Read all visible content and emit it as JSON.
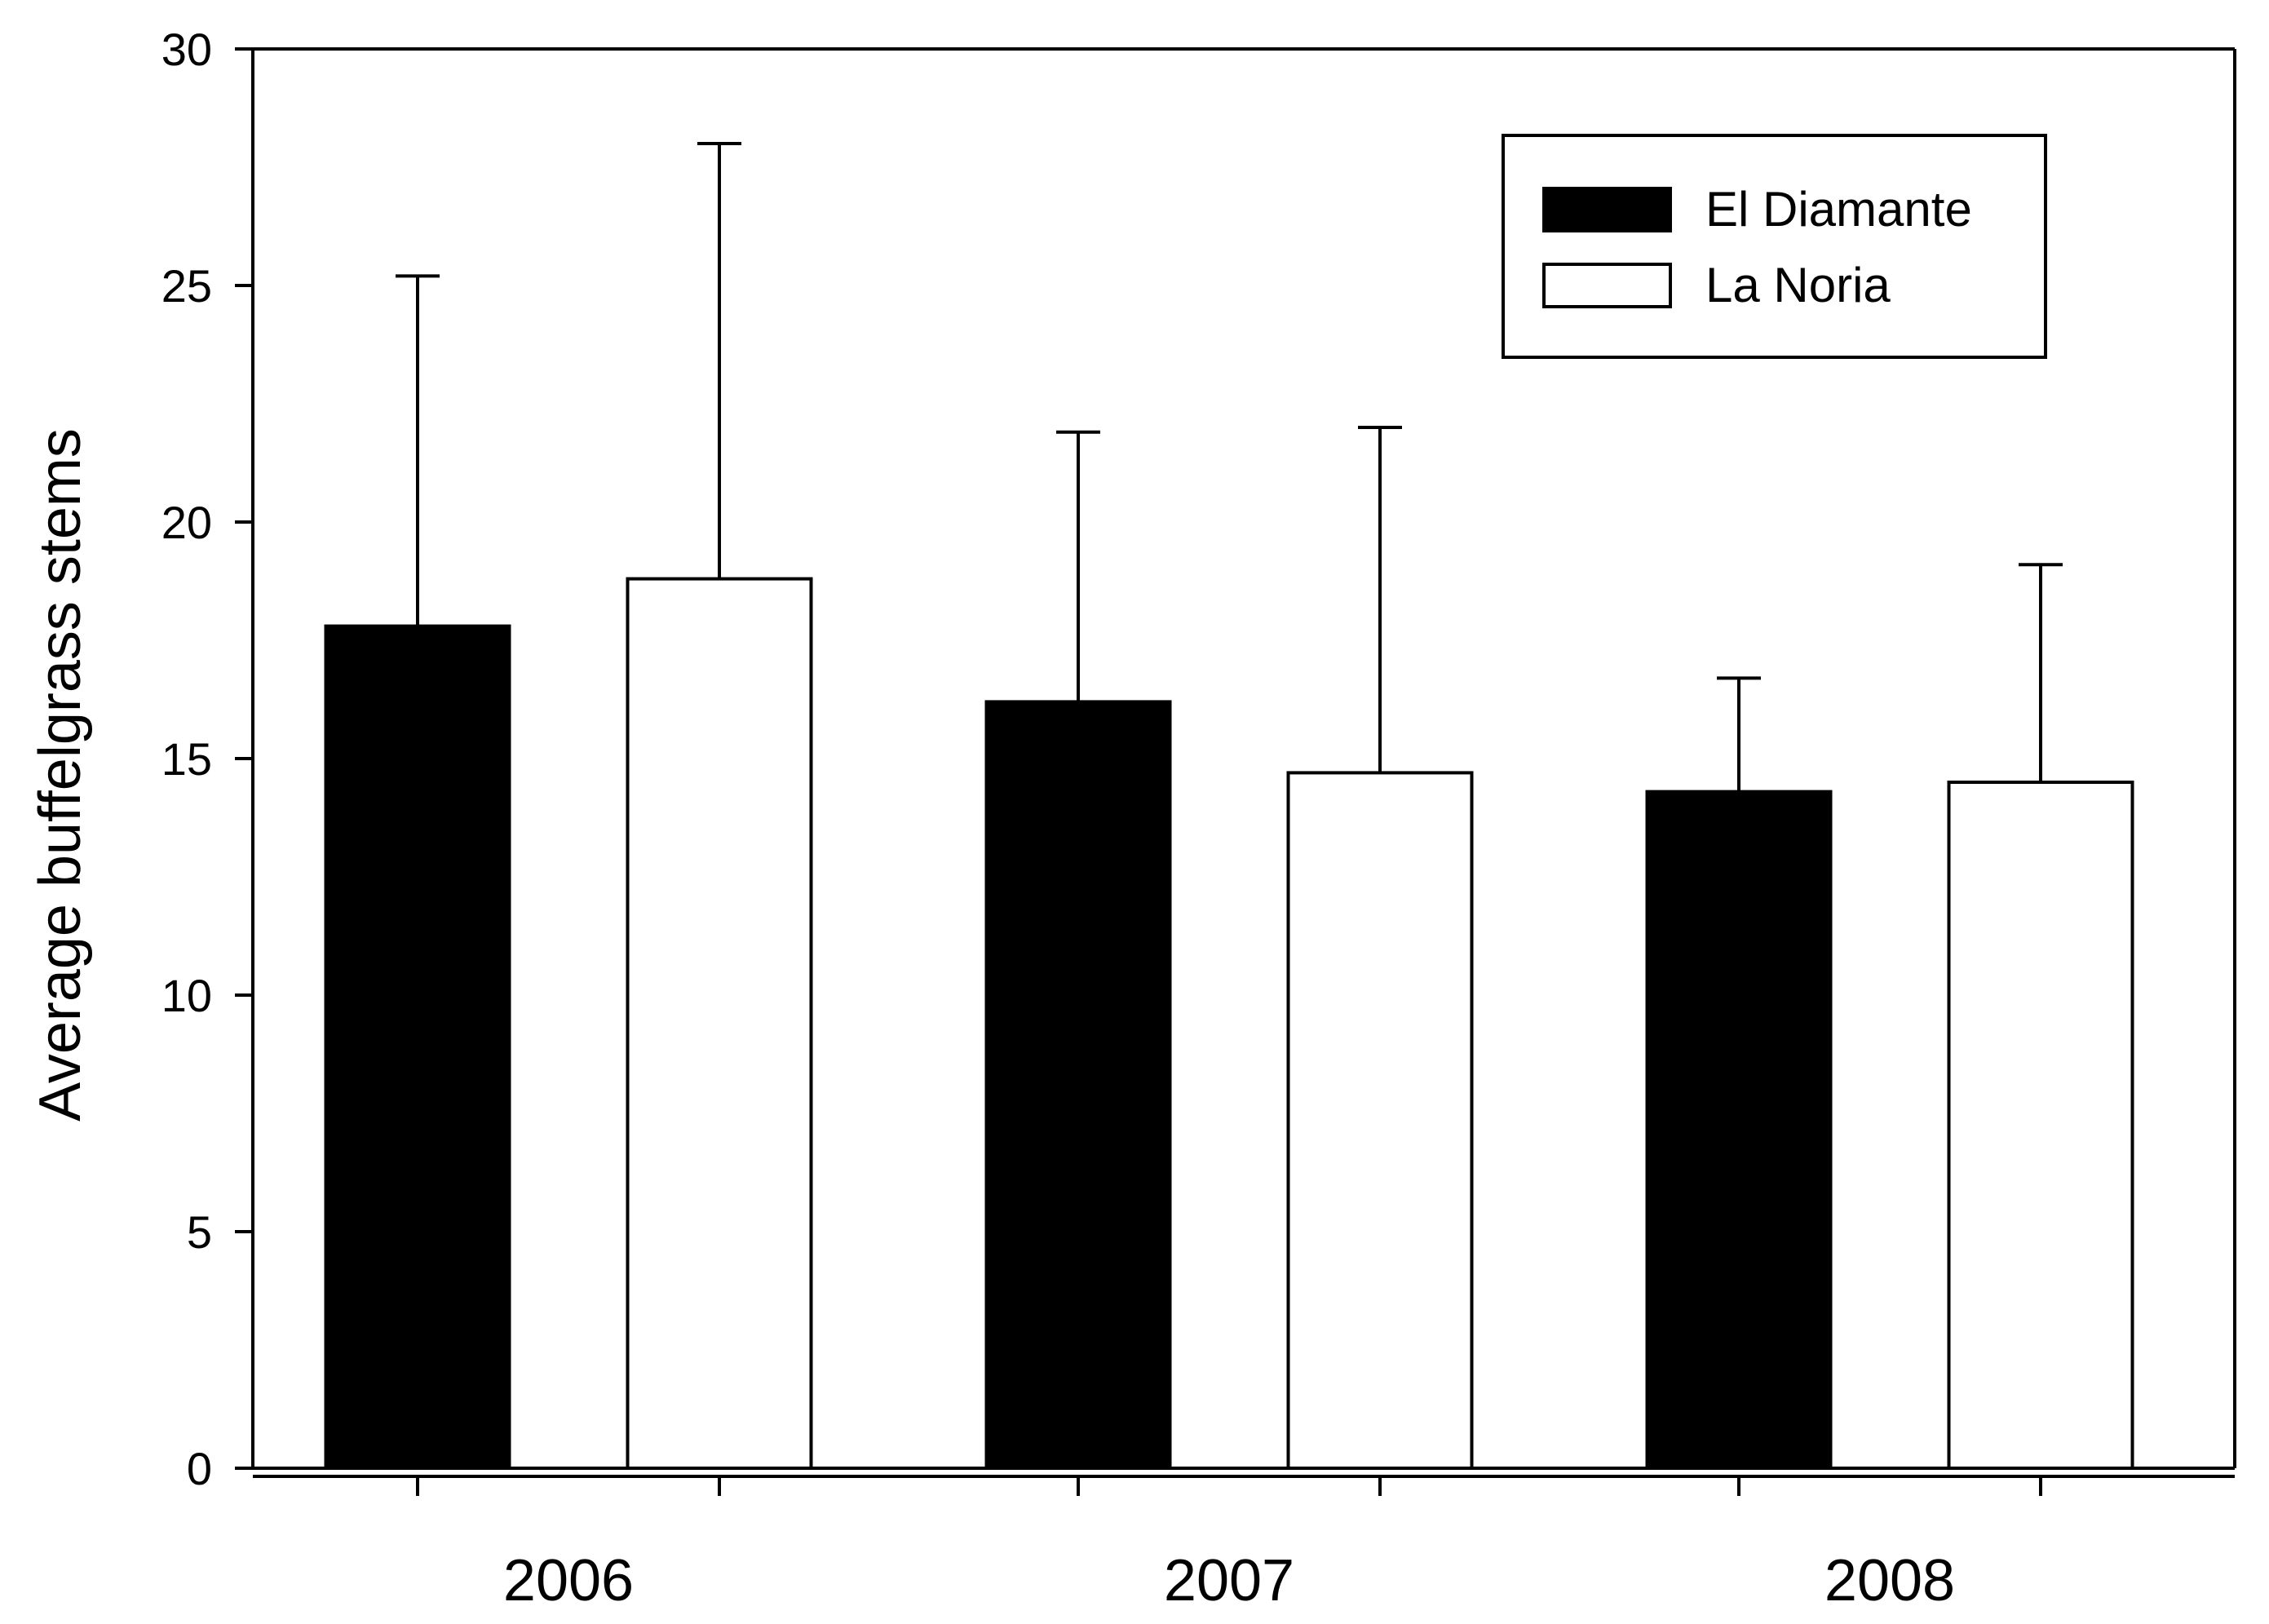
{
  "chart_data": {
    "type": "bar",
    "title": "",
    "xlabel": "",
    "ylabel": "Average buffelgrass stems",
    "ylim": [
      0,
      30
    ],
    "yticks": [
      "0",
      "5",
      "10",
      "15",
      "20",
      "25",
      "30"
    ],
    "categories": [
      "2006",
      "2007",
      "2008"
    ],
    "series": [
      {
        "name": "El Diamante",
        "color": "#000000",
        "values": [
          17.8,
          16.2,
          14.3
        ],
        "error_upper": [
          25.2,
          21.9,
          16.7
        ]
      },
      {
        "name": "La Noria",
        "color": "#ffffff",
        "values": [
          18.8,
          14.7,
          14.5
        ],
        "error_upper": [
          28.0,
          22.0,
          19.1
        ]
      }
    ],
    "legend": {
      "position": "top-right"
    },
    "grid": false
  }
}
